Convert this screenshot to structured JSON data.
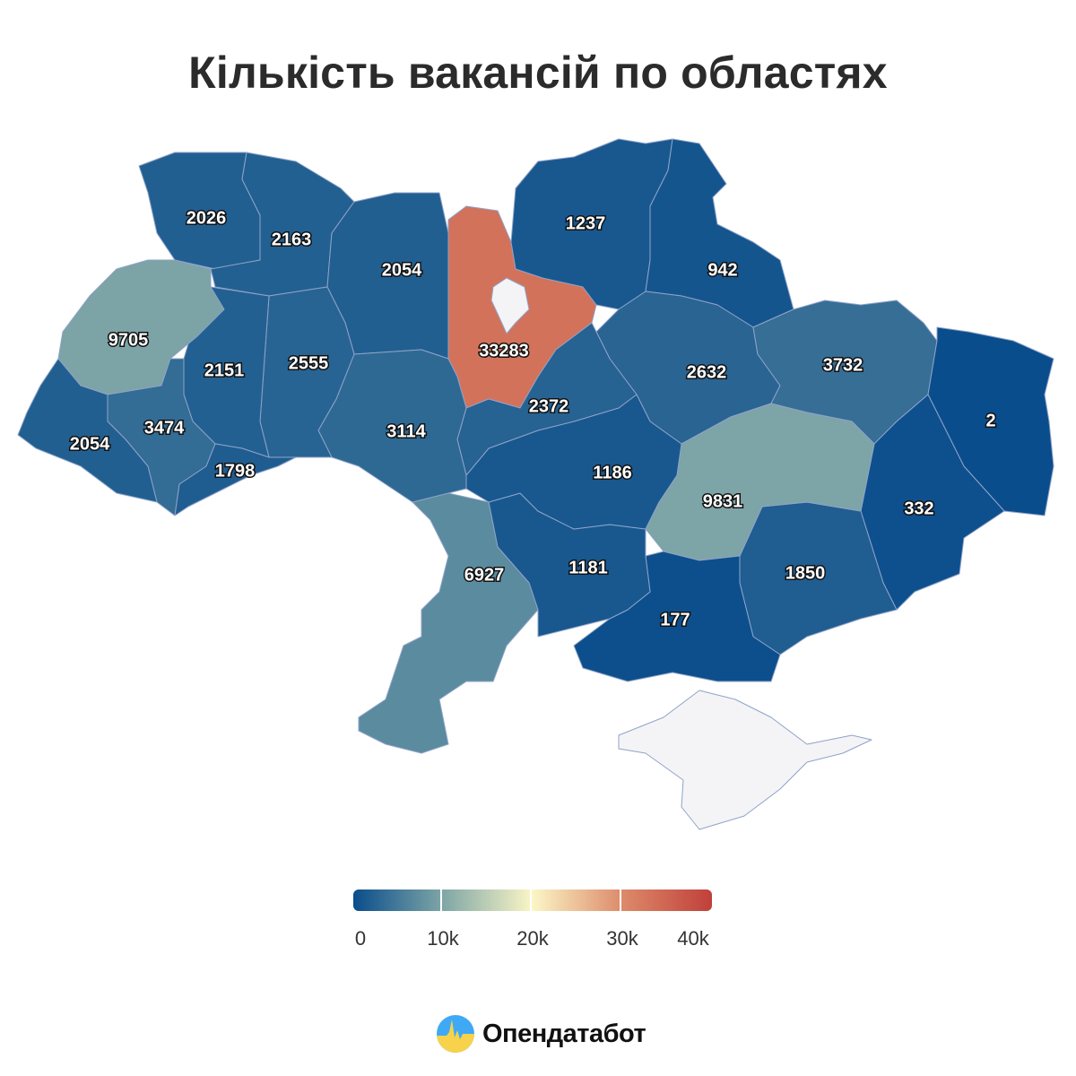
{
  "title": "Кількість вакансій по областях",
  "colors": {
    "scale": [
      "#0a4d8c",
      "#7fa6a6",
      "#fbf6c6",
      "#dd8a6a",
      "#c0403a"
    ],
    "no_data": "#f4f4f6"
  },
  "legend": {
    "ticks": [
      "0",
      "10k",
      "20k",
      "30k",
      "40k"
    ],
    "min": 0,
    "max": 40000
  },
  "logo": {
    "text": "Опендатабот"
  },
  "chart_data": {
    "type": "choropleth",
    "title": "Кількість вакансій по областях",
    "regions": [
      {
        "name": "Volyn",
        "value": 2026
      },
      {
        "name": "Rivne",
        "value": 2163
      },
      {
        "name": "Zhytomyr",
        "value": 2054
      },
      {
        "name": "Kyiv",
        "value": 33283
      },
      {
        "name": "Chernihiv",
        "value": 1237
      },
      {
        "name": "Sumy",
        "value": 942
      },
      {
        "name": "Poltava",
        "value": 2632
      },
      {
        "name": "Kharkiv",
        "value": 3732
      },
      {
        "name": "Luhansk",
        "value": 2
      },
      {
        "name": "Donetsk",
        "value": 332
      },
      {
        "name": "Zaporizhzhia",
        "value": 1850
      },
      {
        "name": "Dnipropetrovsk",
        "value": 9831
      },
      {
        "name": "Kherson",
        "value": 177
      },
      {
        "name": "Mykolaiv",
        "value": 1181
      },
      {
        "name": "Odesa",
        "value": 6927
      },
      {
        "name": "Kirovohrad",
        "value": 1186
      },
      {
        "name": "Cherkasy",
        "value": 2372
      },
      {
        "name": "Vinnytsia",
        "value": 3114
      },
      {
        "name": "Khmelnytskyi",
        "value": 2555
      },
      {
        "name": "Ternopil",
        "value": 2151
      },
      {
        "name": "Lviv",
        "value": 9705
      },
      {
        "name": "Ivano-Frankivsk",
        "value": 3474
      },
      {
        "name": "Zakarpattia",
        "value": 2054
      },
      {
        "name": "Chernivtsi",
        "value": 1798
      }
    ],
    "legend_range": [
      0,
      40000
    ]
  }
}
